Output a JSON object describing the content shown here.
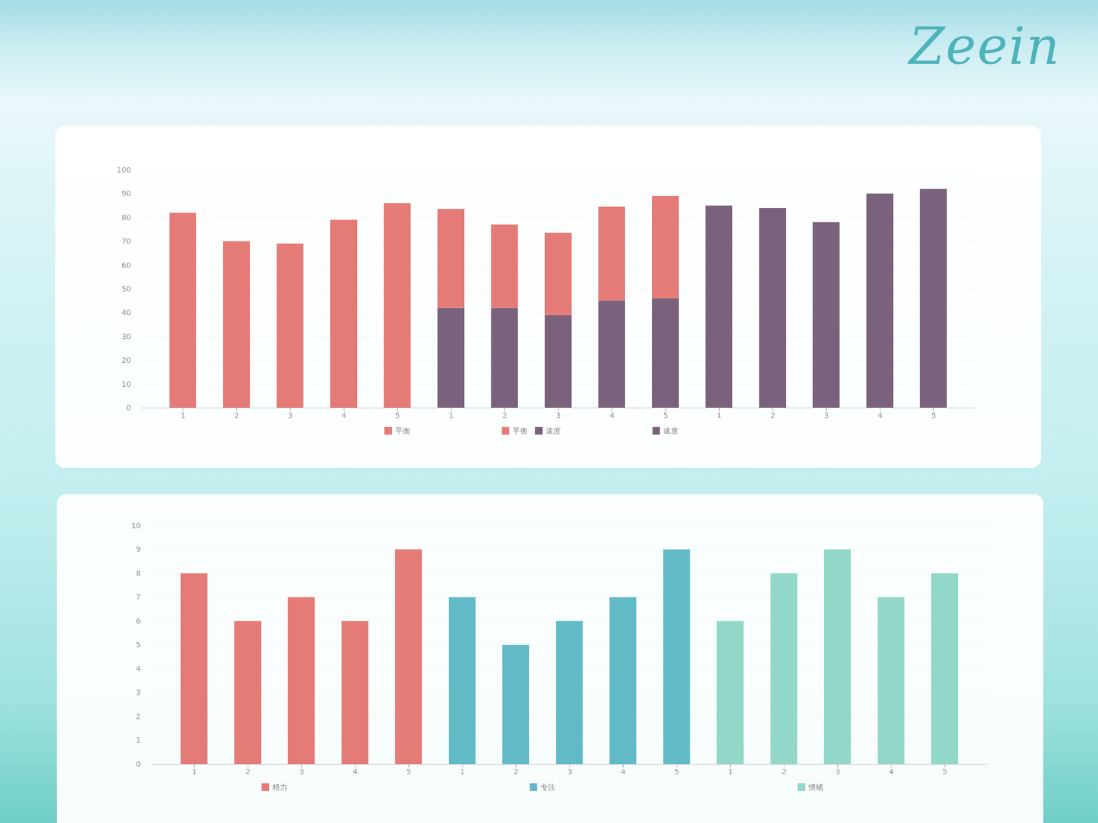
{
  "logo": "Zeein",
  "chart_data": [
    {
      "type": "bar",
      "stacked": true,
      "grid": true,
      "categories": [
        "1",
        "2",
        "3",
        "4",
        "5",
        "1",
        "2",
        "3",
        "4",
        "5",
        "1",
        "2",
        "3",
        "4",
        "5"
      ],
      "series": [
        {
          "name": "平衡",
          "color": "#e57b77",
          "values": [
            82,
            70,
            69,
            79,
            86,
            41.5,
            35,
            34.5,
            39.5,
            43,
            null,
            null,
            null,
            null,
            null
          ]
        },
        {
          "name": "速度",
          "color": "#7a627c",
          "values": [
            null,
            null,
            null,
            null,
            null,
            42,
            42,
            39,
            45,
            46,
            85,
            84,
            78,
            90,
            92
          ]
        }
      ],
      "legend_groups": [
        [
          "平衡"
        ],
        [
          "平衡",
          "速度"
        ],
        [
          "速度"
        ]
      ],
      "ylim": [
        0,
        100
      ],
      "yticks": [
        0,
        10,
        20,
        30,
        40,
        50,
        60,
        70,
        80,
        90,
        100
      ]
    },
    {
      "type": "bar",
      "stacked": false,
      "grid": true,
      "categories": [
        "1",
        "2",
        "3",
        "4",
        "5",
        "1",
        "2",
        "3",
        "4",
        "5",
        "1",
        "2",
        "3",
        "4",
        "5"
      ],
      "series": [
        {
          "name": "精力",
          "color": "#e57b77",
          "values": [
            8,
            6,
            7,
            6,
            9,
            null,
            null,
            null,
            null,
            null,
            null,
            null,
            null,
            null,
            null
          ]
        },
        {
          "name": "专注",
          "color": "#62bac7",
          "values": [
            null,
            null,
            null,
            null,
            null,
            7,
            5,
            6,
            7,
            9,
            null,
            null,
            null,
            null,
            null
          ]
        },
        {
          "name": "情绪",
          "color": "#92d8c8",
          "values": [
            null,
            null,
            null,
            null,
            null,
            null,
            null,
            null,
            null,
            null,
            6,
            8,
            9,
            7,
            8
          ]
        }
      ],
      "legend_groups": [
        [
          "精力"
        ],
        [
          "专注"
        ],
        [
          "情绪"
        ]
      ],
      "ylim": [
        0,
        10
      ],
      "yticks": [
        0,
        1,
        2,
        3,
        4,
        5,
        6,
        7,
        8,
        9,
        10
      ]
    }
  ]
}
